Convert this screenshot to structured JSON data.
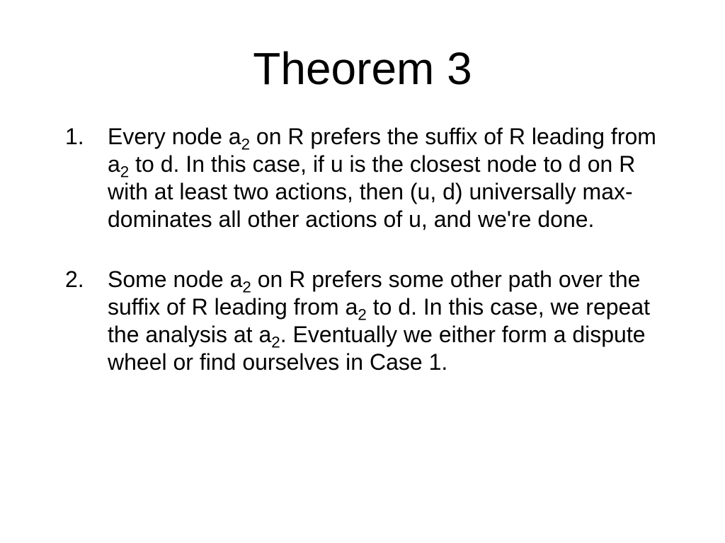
{
  "title": "Theorem 3",
  "items": [
    {
      "parts": [
        "Every node a",
        {
          "sub": "2"
        },
        " on R prefers the suffix of R leading from a",
        {
          "sub": "2"
        },
        " to d. In this case, if u is the closest node to d on R with at least two actions, then (u, d) universally max-dominates all other actions of u, and we're done."
      ]
    },
    {
      "parts": [
        " Some node a",
        {
          "sub": "2"
        },
        " on R prefers some other path over the suffix of R leading from a",
        {
          "sub": "2"
        },
        " to d. In this case, we repeat the analysis at a",
        {
          "sub": "2"
        },
        ". Eventually we either form a dispute wheel or find ourselves in Case 1."
      ]
    }
  ],
  "style": {
    "background_color": "#ffffff",
    "text_color": "#000000",
    "title_fontsize": 64,
    "body_fontsize": 32,
    "font_family": "Arial"
  }
}
